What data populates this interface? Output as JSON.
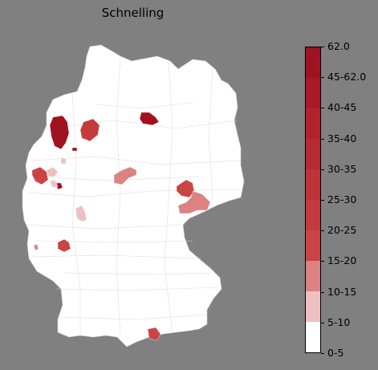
{
  "title": "Schnelling",
  "colors": {
    "background": "#808080",
    "land": "#ffffff",
    "border": "#cfcfcf"
  },
  "legend": {
    "bands": [
      {
        "label": "0-5",
        "color": "#ffffff"
      },
      {
        "label": "5-10",
        "color": "#f0c0c0"
      },
      {
        "label": "10-15",
        "color": "#dc8282"
      },
      {
        "label": "15-20",
        "color": "#cb4444"
      },
      {
        "label": "20-25",
        "color": "#c53b3d"
      },
      {
        "label": "25-30",
        "color": "#be3337"
      },
      {
        "label": "30-35",
        "color": "#b82a31"
      },
      {
        "label": "35-40",
        "color": "#b1222b"
      },
      {
        "label": "40-45",
        "color": "#a91a26"
      },
      {
        "label": "45-62.0",
        "color": "#a01220"
      }
    ],
    "ticks": [
      "0-5",
      "5-10",
      "10-15",
      "15-20",
      "20-25",
      "25-30",
      "30-35",
      "35-40",
      "40-45",
      "45-62.0",
      "62.0"
    ]
  },
  "highlighted_regions": [
    {
      "name": "region-emsland",
      "color": "#a01220"
    },
    {
      "name": "region-osnabrueck",
      "color": "#c53b3d"
    },
    {
      "name": "region-small-west",
      "color": "#a01220"
    },
    {
      "name": "region-altmark",
      "color": "#a01220"
    },
    {
      "name": "region-kleve",
      "color": "#cb4444"
    },
    {
      "name": "region-duesseldorf",
      "color": "#f0c0c0"
    },
    {
      "name": "region-koeln",
      "color": "#a01220"
    },
    {
      "name": "region-bonn",
      "color": "#f0c0c0"
    },
    {
      "name": "region-paderborn",
      "color": "#f0c0c0"
    },
    {
      "name": "region-kassel",
      "color": "#dc8282"
    },
    {
      "name": "region-leipzig",
      "color": "#cb4444"
    },
    {
      "name": "region-dresden",
      "color": "#dc8282"
    },
    {
      "name": "region-frankfurt",
      "color": "#f0c0c0"
    },
    {
      "name": "region-saar",
      "color": "#cb4444"
    },
    {
      "name": "region-saar-small",
      "color": "#dc8282"
    },
    {
      "name": "region-oberbayern-south",
      "color": "#cb4444"
    }
  ]
}
